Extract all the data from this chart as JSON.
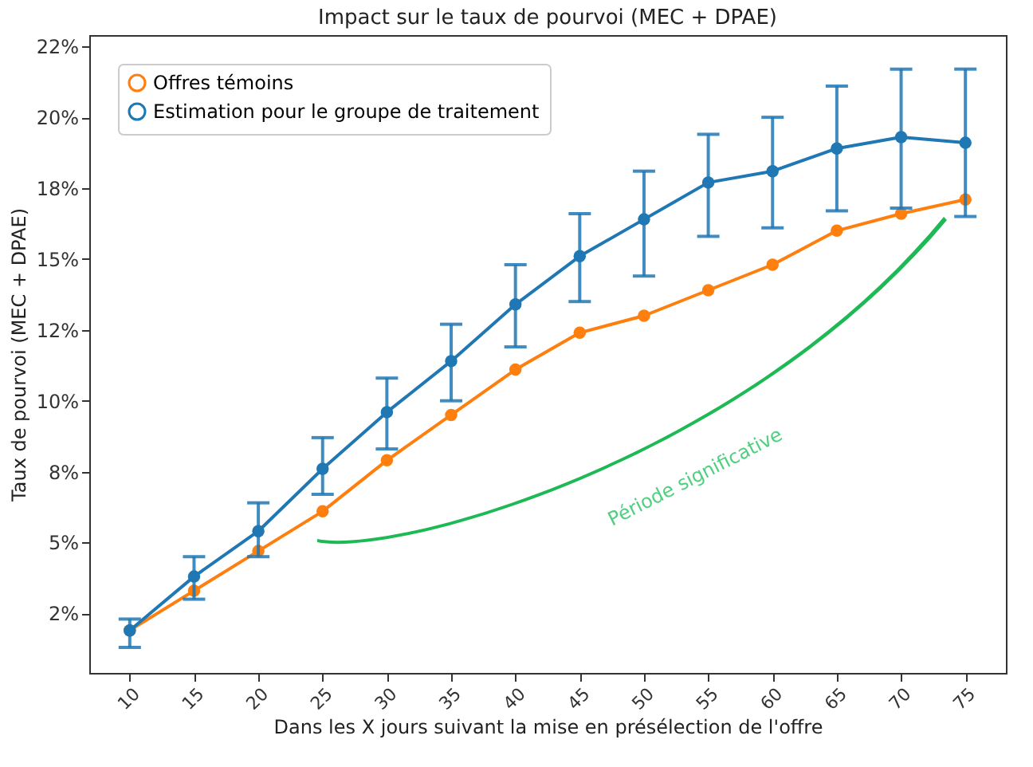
{
  "chart_data": {
    "type": "line",
    "title": "Impact sur le taux de pourvoi (MEC + DPAE)",
    "xlabel": "Dans les X jours suivant la mise en présélection de l'offre",
    "ylabel": "Taux de pourvoi (MEC + DPAE)",
    "categories": [
      "10",
      "15",
      "20",
      "25",
      "30",
      "35",
      "40",
      "45",
      "50",
      "55",
      "60",
      "65",
      "70",
      "75"
    ],
    "series": [
      {
        "name": "Offres témoins",
        "color": "#ff7f0e",
        "values": [
          1.9,
          3.3,
          4.7,
          6.1,
          7.9,
          9.5,
          11.1,
          12.4,
          13.0,
          13.9,
          14.8,
          16.0,
          16.6,
          17.1
        ]
      },
      {
        "name": "Estimation pour le groupe de traitement",
        "color": "#1f77b4",
        "values": [
          1.9,
          3.8,
          5.4,
          7.6,
          9.6,
          11.4,
          13.4,
          15.1,
          16.4,
          17.7,
          18.1,
          18.9,
          19.3,
          19.1
        ],
        "errors": [
          [
            1.3,
            2.3
          ],
          [
            3.0,
            4.5
          ],
          [
            4.5,
            6.4
          ],
          [
            6.7,
            8.7
          ],
          [
            8.3,
            10.8
          ],
          [
            10.0,
            12.7
          ],
          [
            11.9,
            14.8
          ],
          [
            13.5,
            16.6
          ],
          [
            14.4,
            18.1
          ],
          [
            15.8,
            19.4
          ],
          [
            16.1,
            20.0
          ],
          [
            16.7,
            21.1
          ],
          [
            16.8,
            21.7
          ],
          [
            16.5,
            21.7
          ]
        ]
      }
    ],
    "ylim": [
      0.4,
      22.9
    ],
    "yticks": [
      {
        "value": 2.5,
        "label": "2%"
      },
      {
        "value": 5,
        "label": "5%"
      },
      {
        "value": 7.5,
        "label": "8%"
      },
      {
        "value": 10,
        "label": "10%"
      },
      {
        "value": 12.5,
        "label": "12%"
      },
      {
        "value": 15,
        "label": "15%"
      },
      {
        "value": 17.5,
        "label": "18%"
      },
      {
        "value": 20,
        "label": "20%"
      },
      {
        "value": 22.5,
        "label": "22%"
      }
    ],
    "annotations": [
      "Période significative"
    ],
    "legend": "top left",
    "marker": "circle",
    "grid": false
  }
}
